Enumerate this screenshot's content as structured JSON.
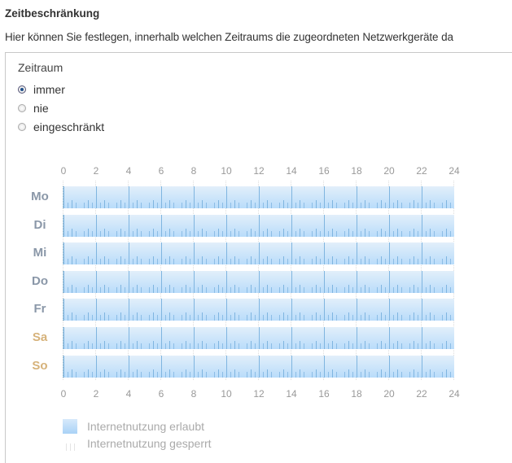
{
  "header": {
    "title": "Zeitbeschränkung",
    "description": "Hier können Sie festlegen, innerhalb welchen Zeitraums die zugeordneten Netzwerkgeräte da"
  },
  "period": {
    "label": "Zeitraum",
    "options": [
      {
        "label": "immer",
        "checked": true
      },
      {
        "label": "nie",
        "checked": false
      },
      {
        "label": "eingeschränkt",
        "checked": false
      }
    ]
  },
  "schedule": {
    "hour_ticks": [
      "0",
      "2",
      "4",
      "6",
      "8",
      "10",
      "12",
      "14",
      "16",
      "18",
      "20",
      "22",
      "24"
    ],
    "days": [
      {
        "label": "Mo",
        "weekend": false,
        "allowed": "0-24"
      },
      {
        "label": "Di",
        "weekend": false,
        "allowed": "0-24"
      },
      {
        "label": "Mi",
        "weekend": false,
        "allowed": "0-24"
      },
      {
        "label": "Do",
        "weekend": false,
        "allowed": "0-24"
      },
      {
        "label": "Fr",
        "weekend": false,
        "allowed": "0-24"
      },
      {
        "label": "Sa",
        "weekend": true,
        "allowed": "0-24"
      },
      {
        "label": "So",
        "weekend": true,
        "allowed": "0-24"
      }
    ]
  },
  "legend": {
    "allowed": "Internetnutzung erlaubt",
    "blocked": "Internetnutzung gesperrt"
  },
  "colors": {
    "allowed": "#b9dcfa",
    "weekday_label": "#8a97a8",
    "weekend_label": "#d6b27a"
  }
}
